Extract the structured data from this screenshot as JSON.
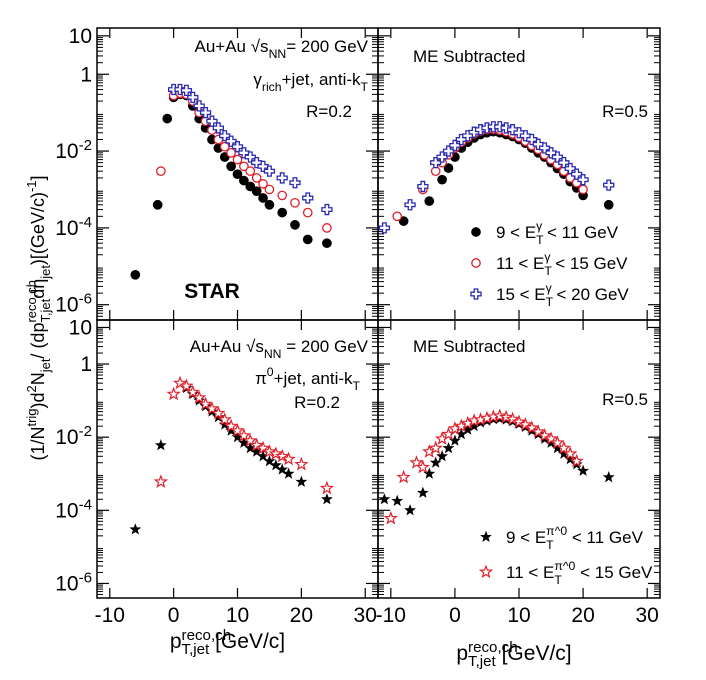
{
  "chart_data": [
    {
      "type": "scatter",
      "log_y": true,
      "ylabel": "(1/N^{trig})d^{2}N_{jet}/  (dp^{reco,ch}_{T,jet}dη_{jet})[(GeV/c)^{-1}]",
      "annotations": [
        "Au+Au √s_{NN}= 200 GeV",
        "γ_{rich}+jet, anti-k_{T}",
        "R=0.2",
        "STAR"
      ],
      "xlim": [
        -12,
        32
      ],
      "xticks": [
        -10,
        0,
        10,
        20,
        30
      ],
      "show_xtick_labels": false,
      "ylim": [
        4e-07,
        16
      ],
      "yticks": [
        10,
        1,
        {
          "value": 0.01,
          "label": "10^{-2}"
        },
        {
          "value": 0.0001,
          "label": "10^{-4}"
        },
        {
          "value": 1e-06,
          "label": "10^{-6}"
        }
      ],
      "show_ytick_labels": true,
      "series": [
        {
          "color": "#000000",
          "marker": "filled-circle",
          "x": [
            -6,
            -2.5,
            -1,
            0,
            1,
            2,
            3,
            4,
            5,
            6,
            7,
            8,
            9,
            10,
            11,
            12,
            13,
            14,
            15,
            17,
            19,
            21,
            24
          ],
          "values": [
            6e-06,
            0.0004,
            0.07,
            0.25,
            0.3,
            0.28,
            0.15,
            0.07,
            0.04,
            0.02,
            0.012,
            0.007,
            0.004,
            0.0025,
            0.0017,
            0.0012,
            0.0009,
            0.0006,
            0.0004,
            0.00025,
            0.00012,
            5e-05,
            4e-05
          ]
        },
        {
          "color": "#e0202a",
          "marker": "open-circle",
          "x": [
            -2,
            0,
            1,
            2,
            3,
            4,
            5,
            6,
            7,
            8,
            9,
            10,
            11,
            12,
            13,
            14,
            15,
            17,
            19,
            21,
            24
          ],
          "values": [
            0.003,
            0.28,
            0.32,
            0.3,
            0.2,
            0.1,
            0.06,
            0.035,
            0.02,
            0.013,
            0.009,
            0.006,
            0.004,
            0.003,
            0.002,
            0.0014,
            0.001,
            0.0007,
            0.00045,
            0.00025,
            0.0001
          ]
        },
        {
          "color": "#2a2ab4",
          "marker": "open-cross",
          "x": [
            0,
            1,
            2,
            3,
            4,
            5,
            6,
            7,
            8,
            9,
            10,
            11,
            12,
            13,
            14,
            15,
            17,
            19,
            21,
            24
          ],
          "values": [
            0.4,
            0.4,
            0.38,
            0.25,
            0.15,
            0.1,
            0.06,
            0.04,
            0.025,
            0.018,
            0.013,
            0.009,
            0.007,
            0.005,
            0.004,
            0.003,
            0.002,
            0.0015,
            0.0006,
            0.0003
          ]
        }
      ]
    },
    {
      "type": "scatter",
      "log_y": true,
      "annotations": [
        "ME Subtracted",
        "R=0.5"
      ],
      "xlim": [
        -12,
        32
      ],
      "xticks": [
        -10,
        0,
        10,
        20,
        30
      ],
      "show_xtick_labels": false,
      "ylim": [
        4e-07,
        16
      ],
      "yticks": [
        10,
        1,
        0.01,
        0.0001,
        1e-06
      ],
      "show_ytick_labels": false,
      "legend": "lower right",
      "series": [
        {
          "name": "9 < E_{T}^{γ} < 11 GeV",
          "color": "#000000",
          "marker": "filled-circle",
          "x": [
            -8,
            -4,
            -2,
            -1,
            0,
            1,
            2,
            3,
            4,
            5,
            6,
            7,
            8,
            9,
            10,
            11,
            12,
            13,
            14,
            15,
            16,
            17,
            18,
            19,
            20,
            24
          ],
          "values": [
            0.00015,
            0.0005,
            0.0018,
            0.0036,
            0.007,
            0.012,
            0.017,
            0.022,
            0.027,
            0.03,
            0.032,
            0.03,
            0.027,
            0.024,
            0.02,
            0.016,
            0.012,
            0.009,
            0.007,
            0.005,
            0.0035,
            0.0025,
            0.0016,
            0.0011,
            0.0007,
            0.0004
          ]
        },
        {
          "name": "11 < E_{T}^{γ} < 15 GeV",
          "color": "#e0202a",
          "marker": "open-circle",
          "x": [
            -9,
            -5,
            -3,
            -2,
            -1,
            0,
            1,
            2,
            3,
            4,
            5,
            6,
            7,
            8,
            9,
            10,
            11,
            12,
            13,
            14,
            15,
            16,
            17,
            18,
            19,
            20
          ],
          "values": [
            0.0002,
            0.001,
            0.003,
            0.005,
            0.008,
            0.012,
            0.017,
            0.022,
            0.028,
            0.033,
            0.036,
            0.037,
            0.035,
            0.032,
            0.028,
            0.023,
            0.018,
            0.014,
            0.011,
            0.008,
            0.006,
            0.0045,
            0.003,
            0.002,
            0.0015,
            0.001
          ]
        },
        {
          "name": "15 < E_{T}^{γ} < 20 GeV",
          "color": "#2a2ab4",
          "marker": "open-cross",
          "x": [
            -11,
            -7,
            -5,
            -3,
            -2,
            -1,
            0,
            1,
            2,
            3,
            4,
            5,
            6,
            7,
            8,
            9,
            10,
            11,
            12,
            13,
            14,
            15,
            16,
            17,
            18,
            19,
            20,
            24
          ],
          "values": [
            0.0001,
            0.0004,
            0.0012,
            0.005,
            0.007,
            0.01,
            0.014,
            0.02,
            0.025,
            0.031,
            0.036,
            0.04,
            0.043,
            0.043,
            0.04,
            0.036,
            0.03,
            0.025,
            0.02,
            0.015,
            0.012,
            0.009,
            0.007,
            0.005,
            0.0035,
            0.0025,
            0.0018,
            0.0013
          ]
        }
      ]
    },
    {
      "type": "scatter",
      "log_y": true,
      "xlabel": "p^{reco,ch}_{T,jet} [GeV/c]",
      "annotations": [
        "Au+Au √s_{NN} = 200 GeV",
        "π^{0}+jet, anti-k_{T}",
        "R=0.2"
      ],
      "xlim": [
        -12,
        32
      ],
      "xticks": [
        -10,
        0,
        10,
        20,
        30
      ],
      "show_xtick_labels": true,
      "ylim": [
        4e-07,
        16
      ],
      "yticks": [
        10,
        1,
        {
          "value": 0.01,
          "label": "10^{-2}"
        },
        {
          "value": 0.0001,
          "label": "10^{-4}"
        },
        {
          "value": 1e-06,
          "label": "10^{-6}"
        }
      ],
      "show_ytick_labels": true,
      "series": [
        {
          "color": "#000000",
          "marker": "filled-star",
          "x": [
            -6,
            -2,
            0,
            1,
            2,
            3,
            4,
            5,
            6,
            7,
            8,
            9,
            10,
            11,
            12,
            13,
            14,
            15,
            16,
            17,
            18,
            20,
            24
          ],
          "values": [
            3e-05,
            0.006,
            0.15,
            0.3,
            0.22,
            0.15,
            0.1,
            0.07,
            0.05,
            0.035,
            0.022,
            0.015,
            0.01,
            0.007,
            0.005,
            0.004,
            0.003,
            0.0022,
            0.0017,
            0.0013,
            0.001,
            0.0006,
            0.0002
          ]
        },
        {
          "color": "#e0202a",
          "marker": "open-star",
          "x": [
            -2,
            0,
            1,
            2,
            3,
            4,
            5,
            6,
            7,
            8,
            9,
            10,
            11,
            12,
            13,
            14,
            15,
            16,
            17,
            18,
            20,
            24
          ],
          "values": [
            0.0006,
            0.15,
            0.3,
            0.25,
            0.17,
            0.12,
            0.08,
            0.06,
            0.045,
            0.03,
            0.02,
            0.015,
            0.011,
            0.008,
            0.006,
            0.005,
            0.004,
            0.0035,
            0.003,
            0.0025,
            0.0018,
            0.0004
          ]
        }
      ]
    },
    {
      "type": "scatter",
      "log_y": true,
      "xlabel": "p^{reco,ch}_{T,jet} [GeV/c]",
      "annotations": [
        "ME Subtracted",
        "R=0.5"
      ],
      "xlim": [
        -12,
        32
      ],
      "xticks": [
        -10,
        0,
        10,
        20,
        30
      ],
      "show_xtick_labels": true,
      "ylim": [
        4e-07,
        16
      ],
      "yticks": [
        10,
        1,
        0.01,
        0.0001,
        1e-06
      ],
      "show_ytick_labels": false,
      "legend": "lower right",
      "series": [
        {
          "name": "9 < E_{T}^{π^0} < 11 GeV",
          "color": "#000000",
          "marker": "filled-star",
          "x": [
            -11,
            -9,
            -7,
            -5,
            -4,
            -3,
            -2,
            -1,
            0,
            1,
            2,
            3,
            4,
            5,
            6,
            7,
            8,
            9,
            10,
            11,
            12,
            13,
            14,
            15,
            16,
            17,
            18,
            19,
            20,
            24
          ],
          "values": [
            0.0002,
            0.00018,
            0.0001,
            0.0003,
            0.001,
            0.002,
            0.003,
            0.005,
            0.008,
            0.012,
            0.016,
            0.02,
            0.025,
            0.028,
            0.031,
            0.032,
            0.03,
            0.027,
            0.023,
            0.019,
            0.015,
            0.012,
            0.009,
            0.007,
            0.005,
            0.0035,
            0.0025,
            0.0018,
            0.0012,
            0.0008
          ]
        },
        {
          "name": "11 < E_{T}^{π^0} < 15 GeV",
          "color": "#e0202a",
          "marker": "open-star",
          "x": [
            -10,
            -8,
            -6,
            -5,
            -4,
            -3,
            -2,
            -1,
            0,
            1,
            2,
            3,
            4,
            5,
            6,
            7,
            8,
            9,
            10,
            11,
            12,
            13,
            14,
            15,
            16,
            17,
            18,
            19
          ],
          "values": [
            6e-05,
            0.0008,
            0.002,
            0.0015,
            0.004,
            0.005,
            0.009,
            0.012,
            0.017,
            0.02,
            0.024,
            0.028,
            0.03,
            0.033,
            0.036,
            0.038,
            0.035,
            0.031,
            0.026,
            0.022,
            0.018,
            0.014,
            0.011,
            0.009,
            0.007,
            0.005,
            0.0035,
            0.0022
          ]
        }
      ]
    }
  ]
}
